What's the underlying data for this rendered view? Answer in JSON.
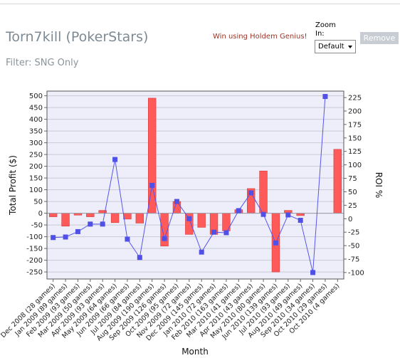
{
  "header": {
    "player_name": "Torn7kill (PokerStars)",
    "filter_text": "Filter: SNG Only",
    "promo_link": "Win using Holdem Genius!",
    "zoom_label": "Zoom In:",
    "zoom_value": "Default",
    "remove_label": "Remove"
  },
  "chart_data": {
    "type": "bar",
    "title": "",
    "xlabel": "Month",
    "ylabel": "Total Profit ($)",
    "y2label": "ROI %",
    "ylim": [
      -280,
      520
    ],
    "y2lim": [
      -112,
      237
    ],
    "yticks": [
      500,
      450,
      400,
      350,
      300,
      250,
      200,
      150,
      100,
      50,
      0,
      -50,
      -100,
      -150,
      -200,
      -250
    ],
    "y2ticks": [
      225,
      200,
      175,
      150,
      125,
      100,
      75,
      50,
      25,
      0,
      -25,
      -50,
      -75,
      -100
    ],
    "grid": true,
    "legend": "none",
    "colors": {
      "bar": "#ff5a5a",
      "bar_edge": "#d43a3a",
      "line": "#5555ee",
      "marker": "#5050e6",
      "plot_bg": "#eeeefa",
      "grid": "#c9c9d6"
    },
    "categories": [
      "Dec 2008 (28 games)",
      "Jan 2009 (89 games)",
      "Feb 2009 (93 games)",
      "Mar 2009 (50 games)",
      "Apr 2009 (93 games)",
      "May 2009 (64 games)",
      "Jun 2009 (66 games)",
      "Jul 2009 (84 games)",
      "Aug 2009 (190 games)",
      "Sep 2009 (126 games)",
      "Oct 2009 (95 games)",
      "Nov 2009 (72 games)",
      "Dec 2009 (145 games)",
      "Jan 2010 (72 games)",
      "Feb 2010 (163 games)",
      "Mar 2010 (41 games)",
      "Apr 2010 (43 games)",
      "May 2010 (80 games)",
      "Jun 2010 (139 games)",
      "Jul 2010 (93 games)",
      "Aug 2010 (49 games)",
      "Sep 2010 (34 games)",
      "Oct 2010 (29 games)",
      "Oct 2010 (4 games)"
    ],
    "series": [
      {
        "name": "",
        "kind": "bar",
        "axis": "left",
        "values": [
          -15,
          -55,
          -8,
          -15,
          12,
          -40,
          -25,
          -42,
          490,
          -140,
          50,
          -90,
          -60,
          -90,
          -75,
          15,
          105,
          180,
          -250,
          12,
          -10,
          0,
          0,
          272
        ]
      },
      {
        "name": "",
        "kind": "line",
        "axis": "right",
        "values": [
          -35,
          -34,
          -24,
          -10,
          -10,
          110,
          -38,
          -72,
          62,
          -37,
          32,
          0,
          -62,
          -25,
          -26,
          15,
          48,
          8,
          -45,
          7,
          -3,
          -100,
          227,
          null
        ]
      }
    ]
  }
}
